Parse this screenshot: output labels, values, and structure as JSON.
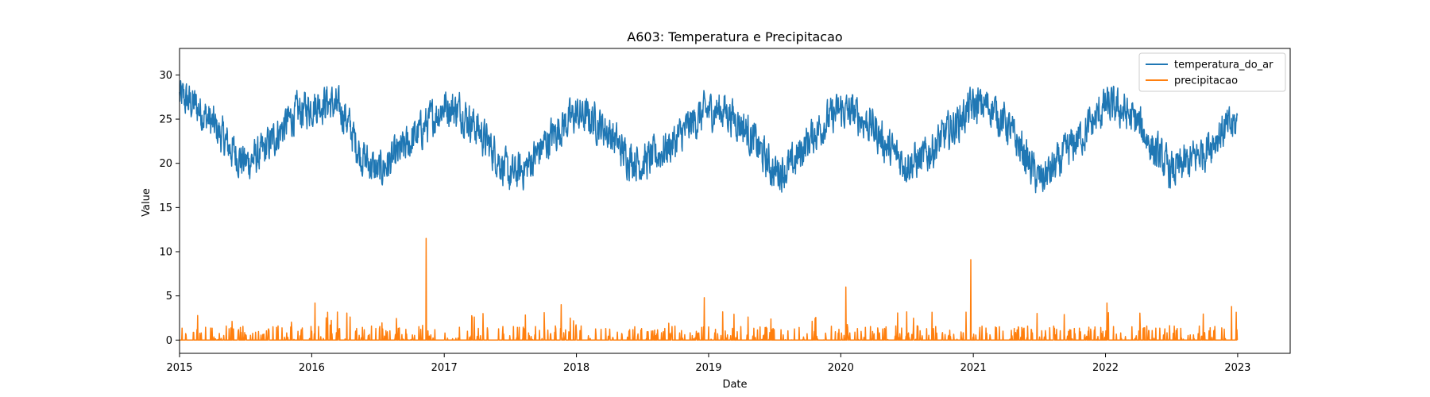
{
  "chart_data": {
    "type": "line",
    "title": "A603: Temperatura e Precipitacao",
    "xlabel": "Date",
    "ylabel": "Value",
    "xlim": [
      "2015-01-01",
      "2023-05-26"
    ],
    "ylim": [
      -1.5,
      33
    ],
    "x_ticks": [
      "2015",
      "2016",
      "2017",
      "2018",
      "2019",
      "2020",
      "2021",
      "2022",
      "2023"
    ],
    "y_ticks": [
      0,
      5,
      10,
      15,
      20,
      25,
      30
    ],
    "grid": false,
    "legend": "top-right",
    "series": [
      {
        "name": "temperatura_do_ar",
        "color": "#1f77b4",
        "x": [
          "2015-01-01",
          "2015-02-15",
          "2015-04-01",
          "2015-05-15",
          "2015-07-01",
          "2015-08-15",
          "2015-10-01",
          "2015-11-15",
          "2016-01-01",
          "2016-02-15",
          "2016-04-01",
          "2016-05-15",
          "2016-07-01",
          "2016-08-15",
          "2016-10-01",
          "2016-11-15",
          "2017-01-01",
          "2017-02-15",
          "2017-04-01",
          "2017-05-15",
          "2017-07-01",
          "2017-08-15",
          "2017-10-01",
          "2017-11-15",
          "2018-01-01",
          "2018-02-15",
          "2018-04-01",
          "2018-05-15",
          "2018-07-01",
          "2018-08-15",
          "2018-10-01",
          "2018-11-15",
          "2019-01-01",
          "2019-02-15",
          "2019-04-01",
          "2019-05-15",
          "2019-07-01",
          "2019-08-15",
          "2019-10-01",
          "2019-11-15",
          "2020-01-01",
          "2020-02-15",
          "2020-04-01",
          "2020-05-15",
          "2020-07-01",
          "2020-08-15",
          "2020-10-01",
          "2020-11-15",
          "2021-01-01",
          "2021-02-15",
          "2021-04-01",
          "2021-05-15",
          "2021-07-01",
          "2021-08-15",
          "2021-10-01",
          "2021-11-15",
          "2022-01-01",
          "2022-02-15",
          "2022-04-01",
          "2022-05-15",
          "2022-07-01",
          "2022-08-15",
          "2022-10-01",
          "2022-11-15",
          "2022-12-31"
        ],
        "values": [
          27.5,
          26.5,
          24.5,
          22.0,
          20.0,
          21.0,
          23.5,
          25.5,
          26.5,
          27.0,
          25.5,
          21.0,
          19.0,
          20.5,
          22.5,
          24.5,
          26.5,
          26.0,
          24.0,
          21.5,
          18.5,
          19.5,
          22.0,
          24.0,
          25.5,
          25.0,
          23.5,
          21.0,
          20.0,
          21.0,
          22.5,
          24.5,
          26.0,
          26.0,
          24.5,
          22.0,
          19.0,
          19.5,
          22.5,
          24.5,
          26.0,
          25.5,
          24.0,
          21.5,
          20.0,
          20.5,
          22.5,
          24.5,
          26.5,
          26.5,
          24.5,
          21.5,
          18.0,
          19.5,
          22.0,
          24.0,
          26.5,
          26.0,
          24.5,
          21.5,
          19.0,
          20.0,
          21.5,
          23.5,
          24.5
        ]
      },
      {
        "name": "precipitacao",
        "color": "#ff7f0e",
        "x": [
          "2015-01-01",
          "2016-01-01",
          "2016-11-12",
          "2017-01-01",
          "2018-01-01",
          "2018-12-20",
          "2019-01-01",
          "2020-01-01",
          "2020-01-15",
          "2020-12-25",
          "2021-01-01",
          "2022-01-01",
          "2022-12-31"
        ],
        "values": [
          0,
          0,
          11.5,
          0,
          0,
          4.8,
          0,
          0,
          6.0,
          9.1,
          0,
          0,
          0
        ],
        "note_peaks": [
          {
            "x": "2016-11-12",
            "value": 11.5
          },
          {
            "x": "2018-12-20",
            "value": 4.8
          },
          {
            "x": "2020-01-15",
            "value": 6.0
          },
          {
            "x": "2020-12-25",
            "value": 9.1
          },
          {
            "x": "2016-01-10",
            "value": 4.2
          },
          {
            "x": "2017-11-20",
            "value": 4.0
          },
          {
            "x": "2022-01-05",
            "value": 4.2
          },
          {
            "x": "2022-12-15",
            "value": 3.8
          }
        ]
      }
    ]
  }
}
